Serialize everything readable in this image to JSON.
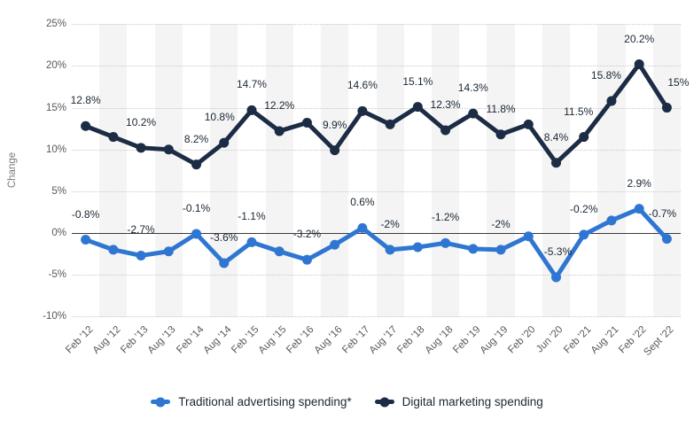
{
  "chart_data": {
    "type": "line",
    "title": "",
    "xlabel": "",
    "ylabel": "Change",
    "x": [
      "Feb '12",
      "Aug '12",
      "Feb '13",
      "Aug '13",
      "Feb '14",
      "Aug '14",
      "Feb '15",
      "Aug '15",
      "Feb '16",
      "Aug '16",
      "Feb '17",
      "Aug '17",
      "Feb '18",
      "Aug '18",
      "Feb '19",
      "Aug '19",
      "Feb '20",
      "Jun '20",
      "Feb '21",
      "Aug '21",
      "Feb '22",
      "Sept '22"
    ],
    "series": [
      {
        "name": "Traditional advertising spending*",
        "color": "#2e76d2",
        "values": [
          -0.8,
          -2,
          -2.7,
          -2.2,
          -0.1,
          -3.6,
          -1.1,
          -2.2,
          -3.2,
          -1.4,
          0.6,
          -2,
          -1.7,
          -1.2,
          -1.9,
          -2,
          -0.4,
          -5.3,
          -0.2,
          1.5,
          2.9,
          -0.7
        ],
        "point_labels": [
          "-0.8%",
          "",
          "-2.7%",
          "",
          "-0.1%",
          "-3.6%",
          "-1.1%",
          "",
          "-3.2%",
          "",
          "0.6%",
          "-2%",
          "",
          "-1.2%",
          "",
          "-2%",
          "",
          "-5.3%",
          "-0.2%",
          "",
          "2.9%",
          "-0.7%"
        ]
      },
      {
        "name": "Digital marketing spending",
        "color": "#1b2c44",
        "values": [
          12.8,
          11.5,
          10.2,
          10,
          8.2,
          10.8,
          14.7,
          12.2,
          13.2,
          9.9,
          14.6,
          13,
          15.1,
          12.3,
          14.3,
          11.8,
          13,
          8.4,
          11.5,
          15.8,
          20.2,
          15
        ],
        "point_labels": [
          "12.8%",
          "",
          "10.2%",
          "",
          "8.2%",
          "10.8%",
          "14.7%",
          "12.2%",
          "",
          "9.9%",
          "14.6%",
          "",
          "15.1%",
          "12.3%",
          "14.3%",
          "11.8%",
          "",
          "8.4%",
          "11.5%",
          "15.8%",
          "20.2%",
          "15%"
        ]
      }
    ],
    "yticks": [
      {
        "label": "25%",
        "value": 25
      },
      {
        "label": "20%",
        "value": 20
      },
      {
        "label": "15%",
        "value": 15
      },
      {
        "label": "10%",
        "value": 10
      },
      {
        "label": "5%",
        "value": 5
      },
      {
        "label": "0%",
        "value": 0
      },
      {
        "label": "-5%",
        "value": -5
      },
      {
        "label": "-10%",
        "value": -10
      }
    ],
    "ylim": [
      -10.1,
      25.1
    ],
    "grid": "horizontal-dotted",
    "zero_axis_line": true,
    "legend_position": "bottom-center",
    "colors": {
      "stripe": "#f4f4f4",
      "gridline": "#c9c9c9",
      "zero_line": "#3a3a3a",
      "tick_text": "#595959",
      "axis_title_text": "#7a7a7a",
      "data_label_text": "#1a2633"
    }
  }
}
